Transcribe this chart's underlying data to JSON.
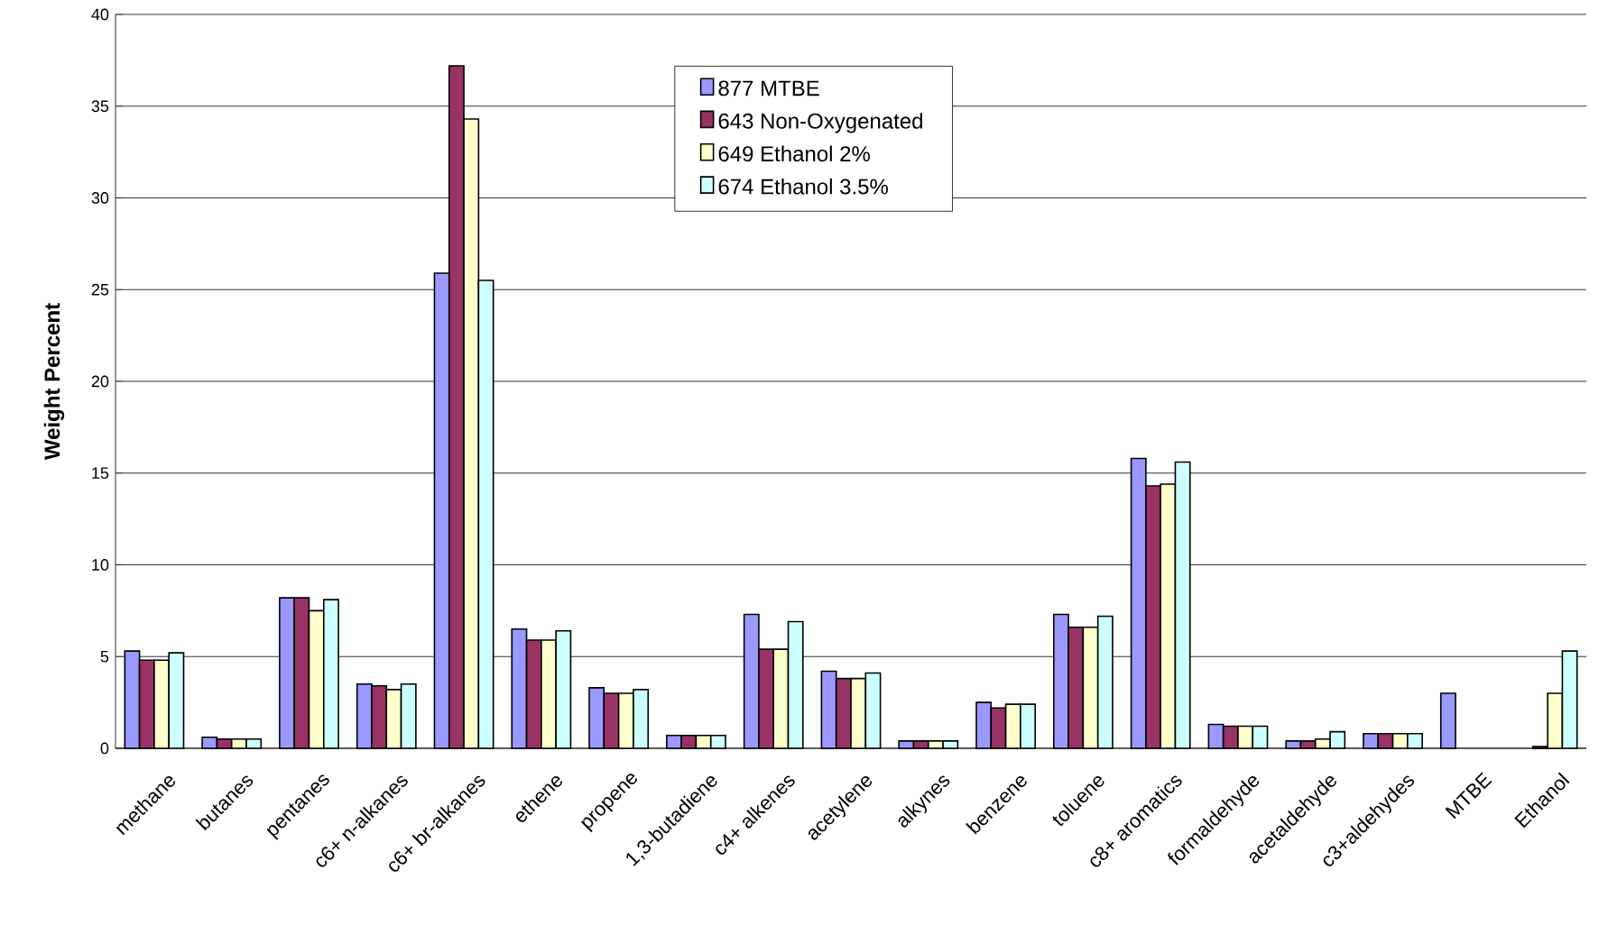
{
  "chart_data": {
    "type": "bar",
    "ylabel": "Weight Percent",
    "categories": [
      "methane",
      "butanes",
      "pentanes",
      "c6+ n-alkanes",
      "c6+ br-alkanes",
      "ethene",
      "propene",
      "1,3-butadiene",
      "c4+ alkenes",
      "acetylene",
      "alkynes",
      "benzene",
      "toluene",
      "c8+ aromatics",
      "formaldehyde",
      "acetaldehyde",
      "c3+aldehydes",
      "MTBE",
      "Ethanol"
    ],
    "series": [
      {
        "name": "877 MTBE",
        "color": "#9999ff",
        "values": [
          5.3,
          0.6,
          8.2,
          3.5,
          25.9,
          6.5,
          3.3,
          0.7,
          7.3,
          4.2,
          0.4,
          2.5,
          7.3,
          15.8,
          1.3,
          0.4,
          0.8,
          3.0,
          null
        ]
      },
      {
        "name": "643 Non-Oxygenated",
        "color": "#993366",
        "values": [
          4.8,
          0.5,
          8.2,
          3.4,
          37.2,
          5.9,
          3.0,
          0.7,
          5.4,
          3.8,
          0.4,
          2.2,
          6.6,
          14.3,
          1.2,
          0.4,
          0.8,
          null,
          0.1
        ]
      },
      {
        "name": "649 Ethanol 2%",
        "color": "#ffffcc",
        "values": [
          4.8,
          0.5,
          7.5,
          3.2,
          34.3,
          5.9,
          3.0,
          0.7,
          5.4,
          3.8,
          0.4,
          2.4,
          6.6,
          14.4,
          1.2,
          0.5,
          0.8,
          null,
          3.0
        ]
      },
      {
        "name": "674 Ethanol 3.5%",
        "color": "#ccffff",
        "values": [
          5.2,
          0.5,
          8.1,
          3.5,
          25.5,
          6.4,
          3.2,
          0.7,
          6.9,
          4.1,
          0.4,
          2.4,
          7.2,
          15.6,
          1.2,
          0.9,
          0.8,
          null,
          5.3
        ]
      }
    ],
    "ylim": [
      0,
      40
    ],
    "yticks": [
      0,
      5,
      10,
      15,
      20,
      25,
      30,
      35,
      40
    ],
    "grid": "y",
    "legend": "top"
  }
}
